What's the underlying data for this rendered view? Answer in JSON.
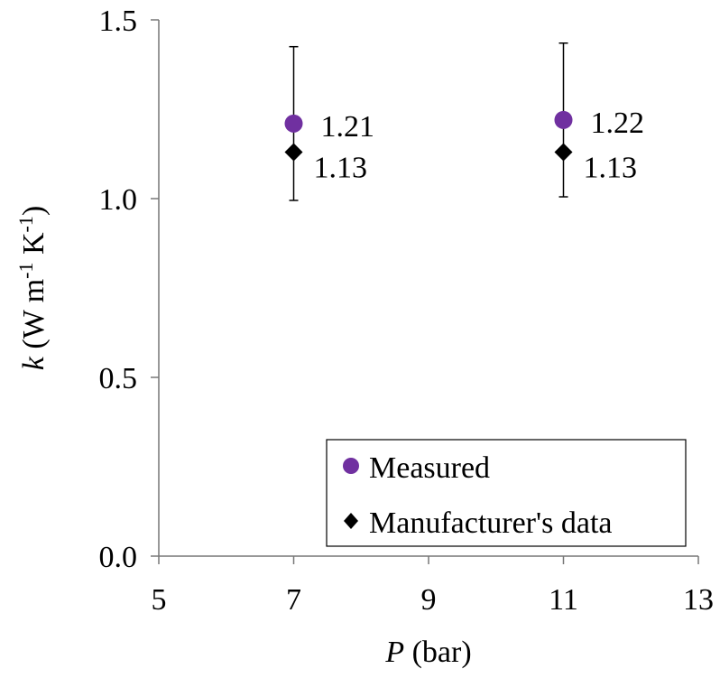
{
  "chart_data": {
    "type": "scatter",
    "xlabel_var": "P",
    "xlabel_unit": " (bar)",
    "ylabel_var": "k",
    "ylabel_unit_parts": [
      " (W m",
      "-1",
      " K",
      "-1",
      ")"
    ],
    "xlim": [
      5,
      13
    ],
    "ylim": [
      0.0,
      1.5
    ],
    "xticks": [
      "5",
      "7",
      "9",
      "11",
      "13"
    ],
    "yticks": [
      "0.0",
      "0.5",
      "1.0",
      "1.5"
    ],
    "grid": false,
    "legend_position": "bottom-right",
    "series": [
      {
        "name": "Measured",
        "marker": "circle",
        "color": "#7030A0",
        "points": [
          {
            "x": 7,
            "y": 1.21,
            "error": 0.215,
            "label": "1.21"
          },
          {
            "x": 11,
            "y": 1.22,
            "error": 0.215,
            "label": "1.22"
          }
        ]
      },
      {
        "name": "Manufacturer's data",
        "marker": "diamond",
        "color": "#000000",
        "points": [
          {
            "x": 7,
            "y": 1.13,
            "label": "1.13"
          },
          {
            "x": 11,
            "y": 1.13,
            "label": "1.13"
          }
        ]
      }
    ]
  }
}
